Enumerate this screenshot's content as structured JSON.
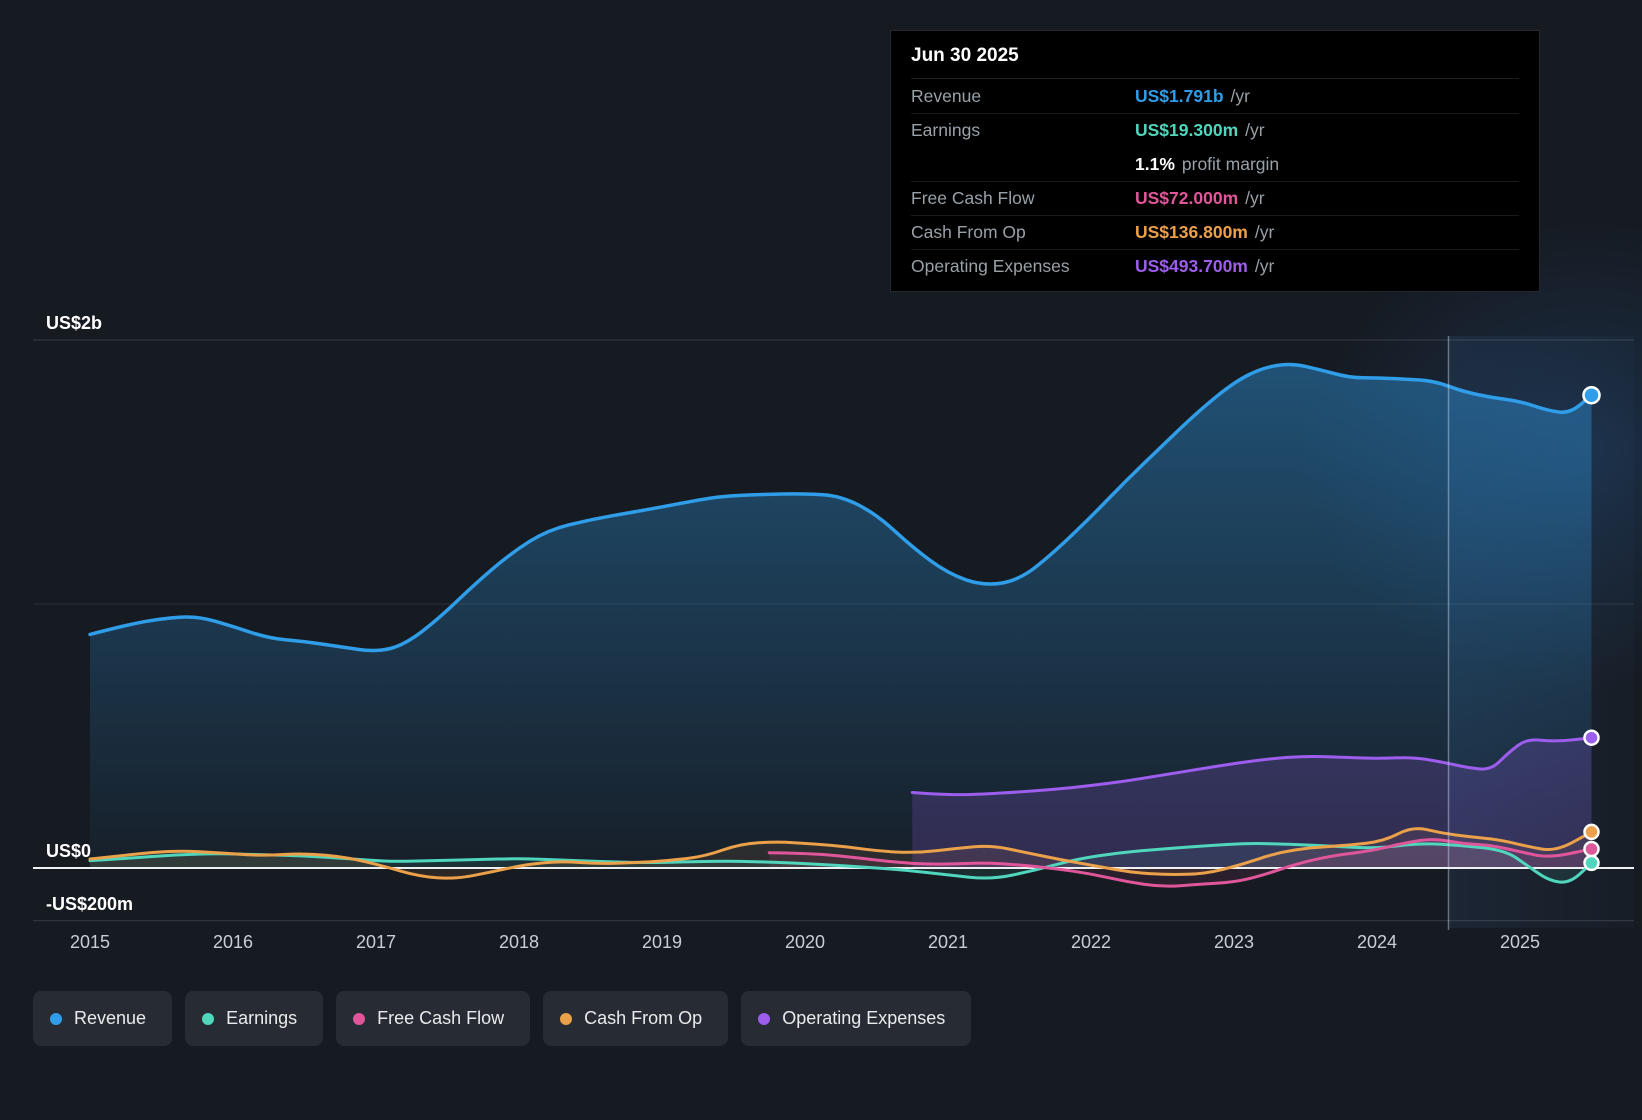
{
  "tooltip": {
    "date": "Jun 30 2025",
    "rows": [
      {
        "label": "Revenue",
        "value": "US$1.791b",
        "suffix": "/yr",
        "color": "#2f9de8"
      },
      {
        "label": "Earnings",
        "value": "US$19.300m",
        "suffix": "/yr",
        "color": "#4fd6bd"
      },
      {
        "label": "",
        "value": "1.1%",
        "suffix": "profit margin",
        "color": "#ffffff"
      },
      {
        "label": "Free Cash Flow",
        "value": "US$72.000m",
        "suffix": "/yr",
        "color": "#e0569b"
      },
      {
        "label": "Cash From Op",
        "value": "US$136.800m",
        "suffix": "/yr",
        "color": "#eba04a"
      },
      {
        "label": "Operating Expenses",
        "value": "US$493.700m",
        "suffix": "/yr",
        "color": "#9d5ded"
      }
    ]
  },
  "chart_data": {
    "type": "line",
    "unit": "US$ millions",
    "xlim": [
      2014.9,
      2025.75
    ],
    "ylim": [
      -200,
      2000
    ],
    "grid": true,
    "legend_position": "bottom",
    "divider_year": 2024.5,
    "x_ticks": [
      2015,
      2016,
      2017,
      2018,
      2019,
      2020,
      2021,
      2022,
      2023,
      2024,
      2025
    ],
    "y_ticks": [
      {
        "value": 2000,
        "label": "US$2b"
      },
      {
        "value": 0,
        "label": "US$0"
      },
      {
        "value": -200,
        "label": "-US$200m"
      }
    ],
    "minor_gridlines": [
      1000
    ],
    "series": [
      {
        "name": "Revenue",
        "color": "#2f9de8",
        "gradient": true,
        "area_opacity": 1,
        "points": [
          [
            2015.0,
            885
          ],
          [
            2015.25,
            920
          ],
          [
            2015.5,
            945
          ],
          [
            2015.75,
            955
          ],
          [
            2016.0,
            915
          ],
          [
            2016.25,
            870
          ],
          [
            2016.5,
            858
          ],
          [
            2016.75,
            838
          ],
          [
            2017.0,
            818
          ],
          [
            2017.2,
            845
          ],
          [
            2017.45,
            950
          ],
          [
            2017.7,
            1080
          ],
          [
            2017.95,
            1195
          ],
          [
            2018.2,
            1280
          ],
          [
            2018.5,
            1320
          ],
          [
            2018.8,
            1348
          ],
          [
            2019.1,
            1378
          ],
          [
            2019.4,
            1408
          ],
          [
            2019.7,
            1415
          ],
          [
            2020.0,
            1418
          ],
          [
            2020.25,
            1410
          ],
          [
            2020.5,
            1340
          ],
          [
            2020.75,
            1215
          ],
          [
            2021.0,
            1115
          ],
          [
            2021.25,
            1068
          ],
          [
            2021.5,
            1090
          ],
          [
            2021.75,
            1200
          ],
          [
            2022.0,
            1330
          ],
          [
            2022.25,
            1470
          ],
          [
            2022.5,
            1600
          ],
          [
            2022.75,
            1730
          ],
          [
            2023.0,
            1840
          ],
          [
            2023.2,
            1895
          ],
          [
            2023.4,
            1912
          ],
          [
            2023.6,
            1888
          ],
          [
            2023.8,
            1858
          ],
          [
            2024.0,
            1856
          ],
          [
            2024.2,
            1852
          ],
          [
            2024.4,
            1845
          ],
          [
            2024.6,
            1805
          ],
          [
            2024.8,
            1782
          ],
          [
            2025.0,
            1768
          ],
          [
            2025.2,
            1732
          ],
          [
            2025.35,
            1722
          ],
          [
            2025.5,
            1791
          ]
        ]
      },
      {
        "name": "Earnings",
        "color": "#4fd6bd",
        "gradient": false,
        "area_opacity": 0.1,
        "points": [
          [
            2015.0,
            28
          ],
          [
            2015.3,
            38
          ],
          [
            2015.6,
            50
          ],
          [
            2015.9,
            55
          ],
          [
            2016.2,
            50
          ],
          [
            2016.5,
            46
          ],
          [
            2016.8,
            36
          ],
          [
            2017.1,
            24
          ],
          [
            2017.4,
            28
          ],
          [
            2017.7,
            32
          ],
          [
            2018.0,
            36
          ],
          [
            2018.3,
            30
          ],
          [
            2018.6,
            24
          ],
          [
            2018.9,
            20
          ],
          [
            2019.2,
            24
          ],
          [
            2019.5,
            26
          ],
          [
            2019.8,
            22
          ],
          [
            2020.1,
            14
          ],
          [
            2020.4,
            4
          ],
          [
            2020.7,
            -8
          ],
          [
            2021.0,
            -26
          ],
          [
            2021.3,
            -44
          ],
          [
            2021.6,
            -10
          ],
          [
            2021.9,
            34
          ],
          [
            2022.2,
            58
          ],
          [
            2022.5,
            72
          ],
          [
            2022.8,
            84
          ],
          [
            2023.1,
            94
          ],
          [
            2023.4,
            90
          ],
          [
            2023.7,
            82
          ],
          [
            2024.0,
            74
          ],
          [
            2024.3,
            94
          ],
          [
            2024.6,
            86
          ],
          [
            2024.9,
            66
          ],
          [
            2025.05,
            10
          ],
          [
            2025.2,
            -48
          ],
          [
            2025.35,
            -58
          ],
          [
            2025.5,
            19.3
          ]
        ]
      },
      {
        "name": "Free Cash Flow",
        "color": "#e0569b",
        "gradient": false,
        "area_opacity": 0.1,
        "points": [
          [
            2019.75,
            58
          ],
          [
            2020.0,
            56
          ],
          [
            2020.25,
            46
          ],
          [
            2020.5,
            30
          ],
          [
            2020.75,
            16
          ],
          [
            2021.0,
            14
          ],
          [
            2021.25,
            20
          ],
          [
            2021.5,
            12
          ],
          [
            2021.75,
            -2
          ],
          [
            2022.0,
            -22
          ],
          [
            2022.25,
            -52
          ],
          [
            2022.5,
            -72
          ],
          [
            2022.75,
            -62
          ],
          [
            2023.0,
            -54
          ],
          [
            2023.2,
            -28
          ],
          [
            2023.45,
            18
          ],
          [
            2023.7,
            48
          ],
          [
            2023.95,
            64
          ],
          [
            2024.2,
            96
          ],
          [
            2024.4,
            112
          ],
          [
            2024.6,
            92
          ],
          [
            2024.8,
            86
          ],
          [
            2025.0,
            62
          ],
          [
            2025.2,
            38
          ],
          [
            2025.5,
            72
          ]
        ]
      },
      {
        "name": "Cash From Op",
        "color": "#eba04a",
        "gradient": false,
        "area_opacity": 0.1,
        "points": [
          [
            2015.0,
            34
          ],
          [
            2015.3,
            52
          ],
          [
            2015.6,
            66
          ],
          [
            2015.9,
            58
          ],
          [
            2016.2,
            46
          ],
          [
            2016.5,
            56
          ],
          [
            2016.8,
            40
          ],
          [
            2017.05,
            8
          ],
          [
            2017.3,
            -32
          ],
          [
            2017.55,
            -42
          ],
          [
            2017.8,
            -16
          ],
          [
            2018.05,
            14
          ],
          [
            2018.3,
            26
          ],
          [
            2018.55,
            16
          ],
          [
            2018.8,
            20
          ],
          [
            2019.05,
            28
          ],
          [
            2019.3,
            44
          ],
          [
            2019.55,
            92
          ],
          [
            2019.8,
            100
          ],
          [
            2020.05,
            92
          ],
          [
            2020.3,
            80
          ],
          [
            2020.55,
            62
          ],
          [
            2020.8,
            58
          ],
          [
            2021.05,
            74
          ],
          [
            2021.3,
            86
          ],
          [
            2021.55,
            58
          ],
          [
            2021.8,
            30
          ],
          [
            2022.05,
            6
          ],
          [
            2022.3,
            -18
          ],
          [
            2022.55,
            -26
          ],
          [
            2022.8,
            -22
          ],
          [
            2023.05,
            12
          ],
          [
            2023.3,
            58
          ],
          [
            2023.55,
            78
          ],
          [
            2023.8,
            86
          ],
          [
            2024.05,
            102
          ],
          [
            2024.25,
            158
          ],
          [
            2024.45,
            132
          ],
          [
            2024.65,
            118
          ],
          [
            2024.85,
            108
          ],
          [
            2025.05,
            82
          ],
          [
            2025.25,
            62
          ],
          [
            2025.5,
            136.8
          ]
        ]
      },
      {
        "name": "Operating Expenses",
        "color": "#9d5ded",
        "gradient": false,
        "area_opacity": 0.2,
        "points": [
          [
            2020.75,
            286
          ],
          [
            2021.0,
            276
          ],
          [
            2021.25,
            280
          ],
          [
            2021.5,
            288
          ],
          [
            2021.75,
            298
          ],
          [
            2022.0,
            312
          ],
          [
            2022.25,
            330
          ],
          [
            2022.5,
            352
          ],
          [
            2022.75,
            374
          ],
          [
            2023.0,
            396
          ],
          [
            2023.25,
            414
          ],
          [
            2023.5,
            424
          ],
          [
            2023.75,
            420
          ],
          [
            2024.0,
            414
          ],
          [
            2024.25,
            420
          ],
          [
            2024.45,
            402
          ],
          [
            2024.65,
            378
          ],
          [
            2024.8,
            372
          ],
          [
            2024.92,
            438
          ],
          [
            2025.05,
            490
          ],
          [
            2025.25,
            478
          ],
          [
            2025.5,
            493.7
          ]
        ]
      }
    ]
  }
}
